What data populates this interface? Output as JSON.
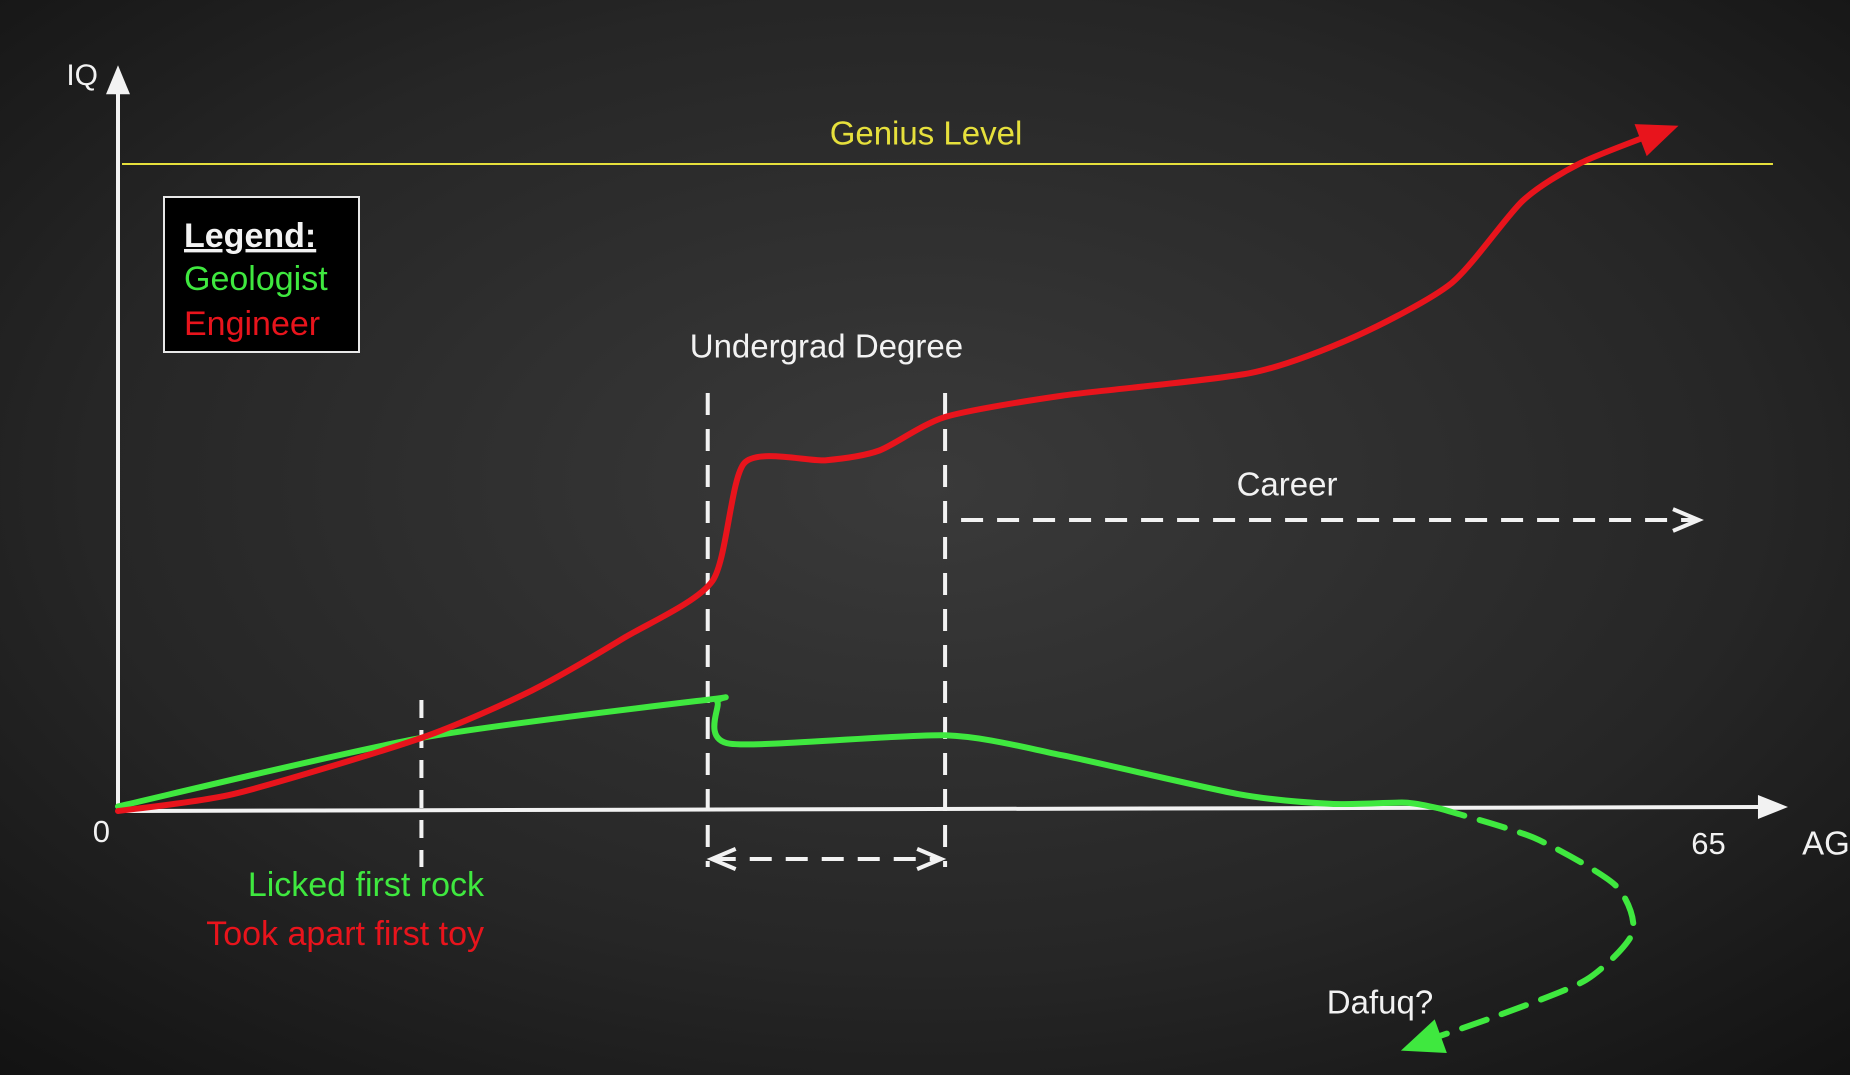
{
  "chart_data": {
    "type": "line",
    "x_label": "AGE",
    "y_label": "IQ",
    "xlim": [
      0,
      68
    ],
    "ylim": [
      0,
      110
    ],
    "xticks": [
      0,
      65
    ],
    "legend": {
      "title": "Legend:",
      "corner": "upper left"
    },
    "series": [
      {
        "name": "Geologist",
        "color": "#3fe83f",
        "x": [
          0,
          12.4,
          24.1,
          24.5,
          25.0,
          33.8,
          38.6,
          45.8,
          49.6,
          52.6,
          54.0
        ],
        "values": [
          0.7,
          11.3,
          17.2,
          16.8,
          10.4,
          11.7,
          8.6,
          2.6,
          1.1,
          1.3,
          0.4
        ]
      },
      {
        "name": "Engineer",
        "color": "#e8141c",
        "x": [
          0,
          4.8,
          12.4,
          16.9,
          20.7,
          24.3,
          25.6,
          28.9,
          31.1,
          33.8,
          38.6,
          46.3,
          50.6,
          54.5,
          57.4,
          59.8,
          63.2
        ],
        "values": [
          0,
          2.7,
          11.3,
          18.6,
          26.8,
          35.6,
          53.8,
          54.2,
          55.7,
          60.9,
          64.2,
          67.7,
          73.4,
          81.6,
          94.3,
          100.2,
          105.3
        ]
      }
    ],
    "annotations": {
      "genius_level": {
        "label": "Genius Level",
        "value": 100,
        "color": "#e6e03c"
      },
      "first_event": {
        "x": 12.4,
        "labels": [
          {
            "text": "Licked first rock",
            "color": "#3fe83f"
          },
          {
            "text": "Took apart first toy",
            "color": "#e8141c"
          }
        ]
      },
      "undergrad": {
        "label": "Undergrad Degree",
        "x": [
          24.1,
          33.8
        ]
      },
      "career": {
        "label": "Career",
        "x": [
          33.8,
          64.6
        ]
      },
      "dafuq": {
        "label": "Dafuq?",
        "color": "#3fe83f",
        "x": [
          54.0,
          57.9,
          61.2,
          61.9,
          60.0,
          56.4,
          53.0
        ],
        "y": [
          0.4,
          -4.2,
          -11.5,
          -18.8,
          -26.1,
          -31.6,
          -36.1
        ]
      }
    }
  }
}
